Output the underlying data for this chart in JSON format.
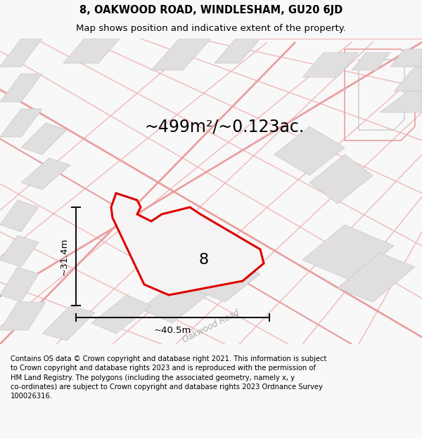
{
  "title_line1": "8, OAKWOOD ROAD, WINDLESHAM, GU20 6JD",
  "title_line2": "Map shows position and indicative extent of the property.",
  "area_text": "~499m²/~0.123ac.",
  "property_label": "8",
  "dim_width": "~40.5m",
  "dim_height": "~31.4m",
  "road_label": "Oakwood Road",
  "footer": "Contains OS data © Crown copyright and database right 2021. This information is subject\nto Crown copyright and database rights 2023 and is reproduced with the permission of\nHM Land Registry. The polygons (including the associated geometry, namely x, y\nco-ordinates) are subject to Crown copyright and database rights 2023 Ordnance Survey\n100026316.",
  "bg_color": "#f8f8f8",
  "map_bg": "#ffffff",
  "road_color": "#f0b8b8",
  "road_color2": "#e8a0a0",
  "building_color": "#e0dede",
  "building_edge": "#c8c8c8",
  "property_edge_color": "#dd0000",
  "property_fill": "#f5f3f3",
  "dim_color": "#111111",
  "title_fontsize": 10.5,
  "subtitle_fontsize": 9.5,
  "area_fontsize": 17,
  "label_fontsize": 16,
  "footer_fontsize": 7.2
}
